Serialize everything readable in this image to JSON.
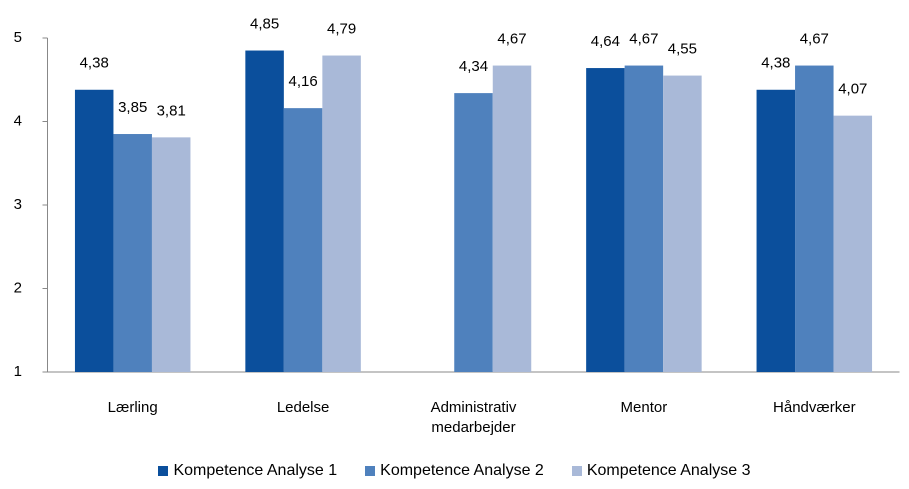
{
  "chart_data": {
    "type": "bar",
    "categories": [
      "Lærling",
      "Ledelse",
      "Administrativ medarbejder",
      "Mentor",
      "Håndværker"
    ],
    "series": [
      {
        "name": "Kompetence Analyse 1",
        "color": "#0b4f9c",
        "values": [
          4.38,
          4.85,
          null,
          4.64,
          4.38
        ],
        "value_labels": [
          "4,38",
          "4,85",
          null,
          "4,64",
          "4,38"
        ]
      },
      {
        "name": "Kompetence Analyse 2",
        "color": "#4f81bd",
        "values": [
          3.85,
          4.16,
          4.34,
          4.67,
          4.67
        ],
        "value_labels": [
          "3,85",
          "4,16",
          "4,34",
          "4,67",
          "4,67"
        ]
      },
      {
        "name": "Kompetence Analyse 3",
        "color": "#a9b9d8",
        "values": [
          3.81,
          4.79,
          4.67,
          4.55,
          4.07
        ],
        "value_labels": [
          "3,81",
          "4,79",
          "4,67",
          "4,55",
          "4,07"
        ]
      }
    ],
    "ylim": [
      1,
      5
    ],
    "yticks": [
      1,
      2,
      3,
      4,
      5
    ],
    "grid": false,
    "legend": "bottom"
  }
}
